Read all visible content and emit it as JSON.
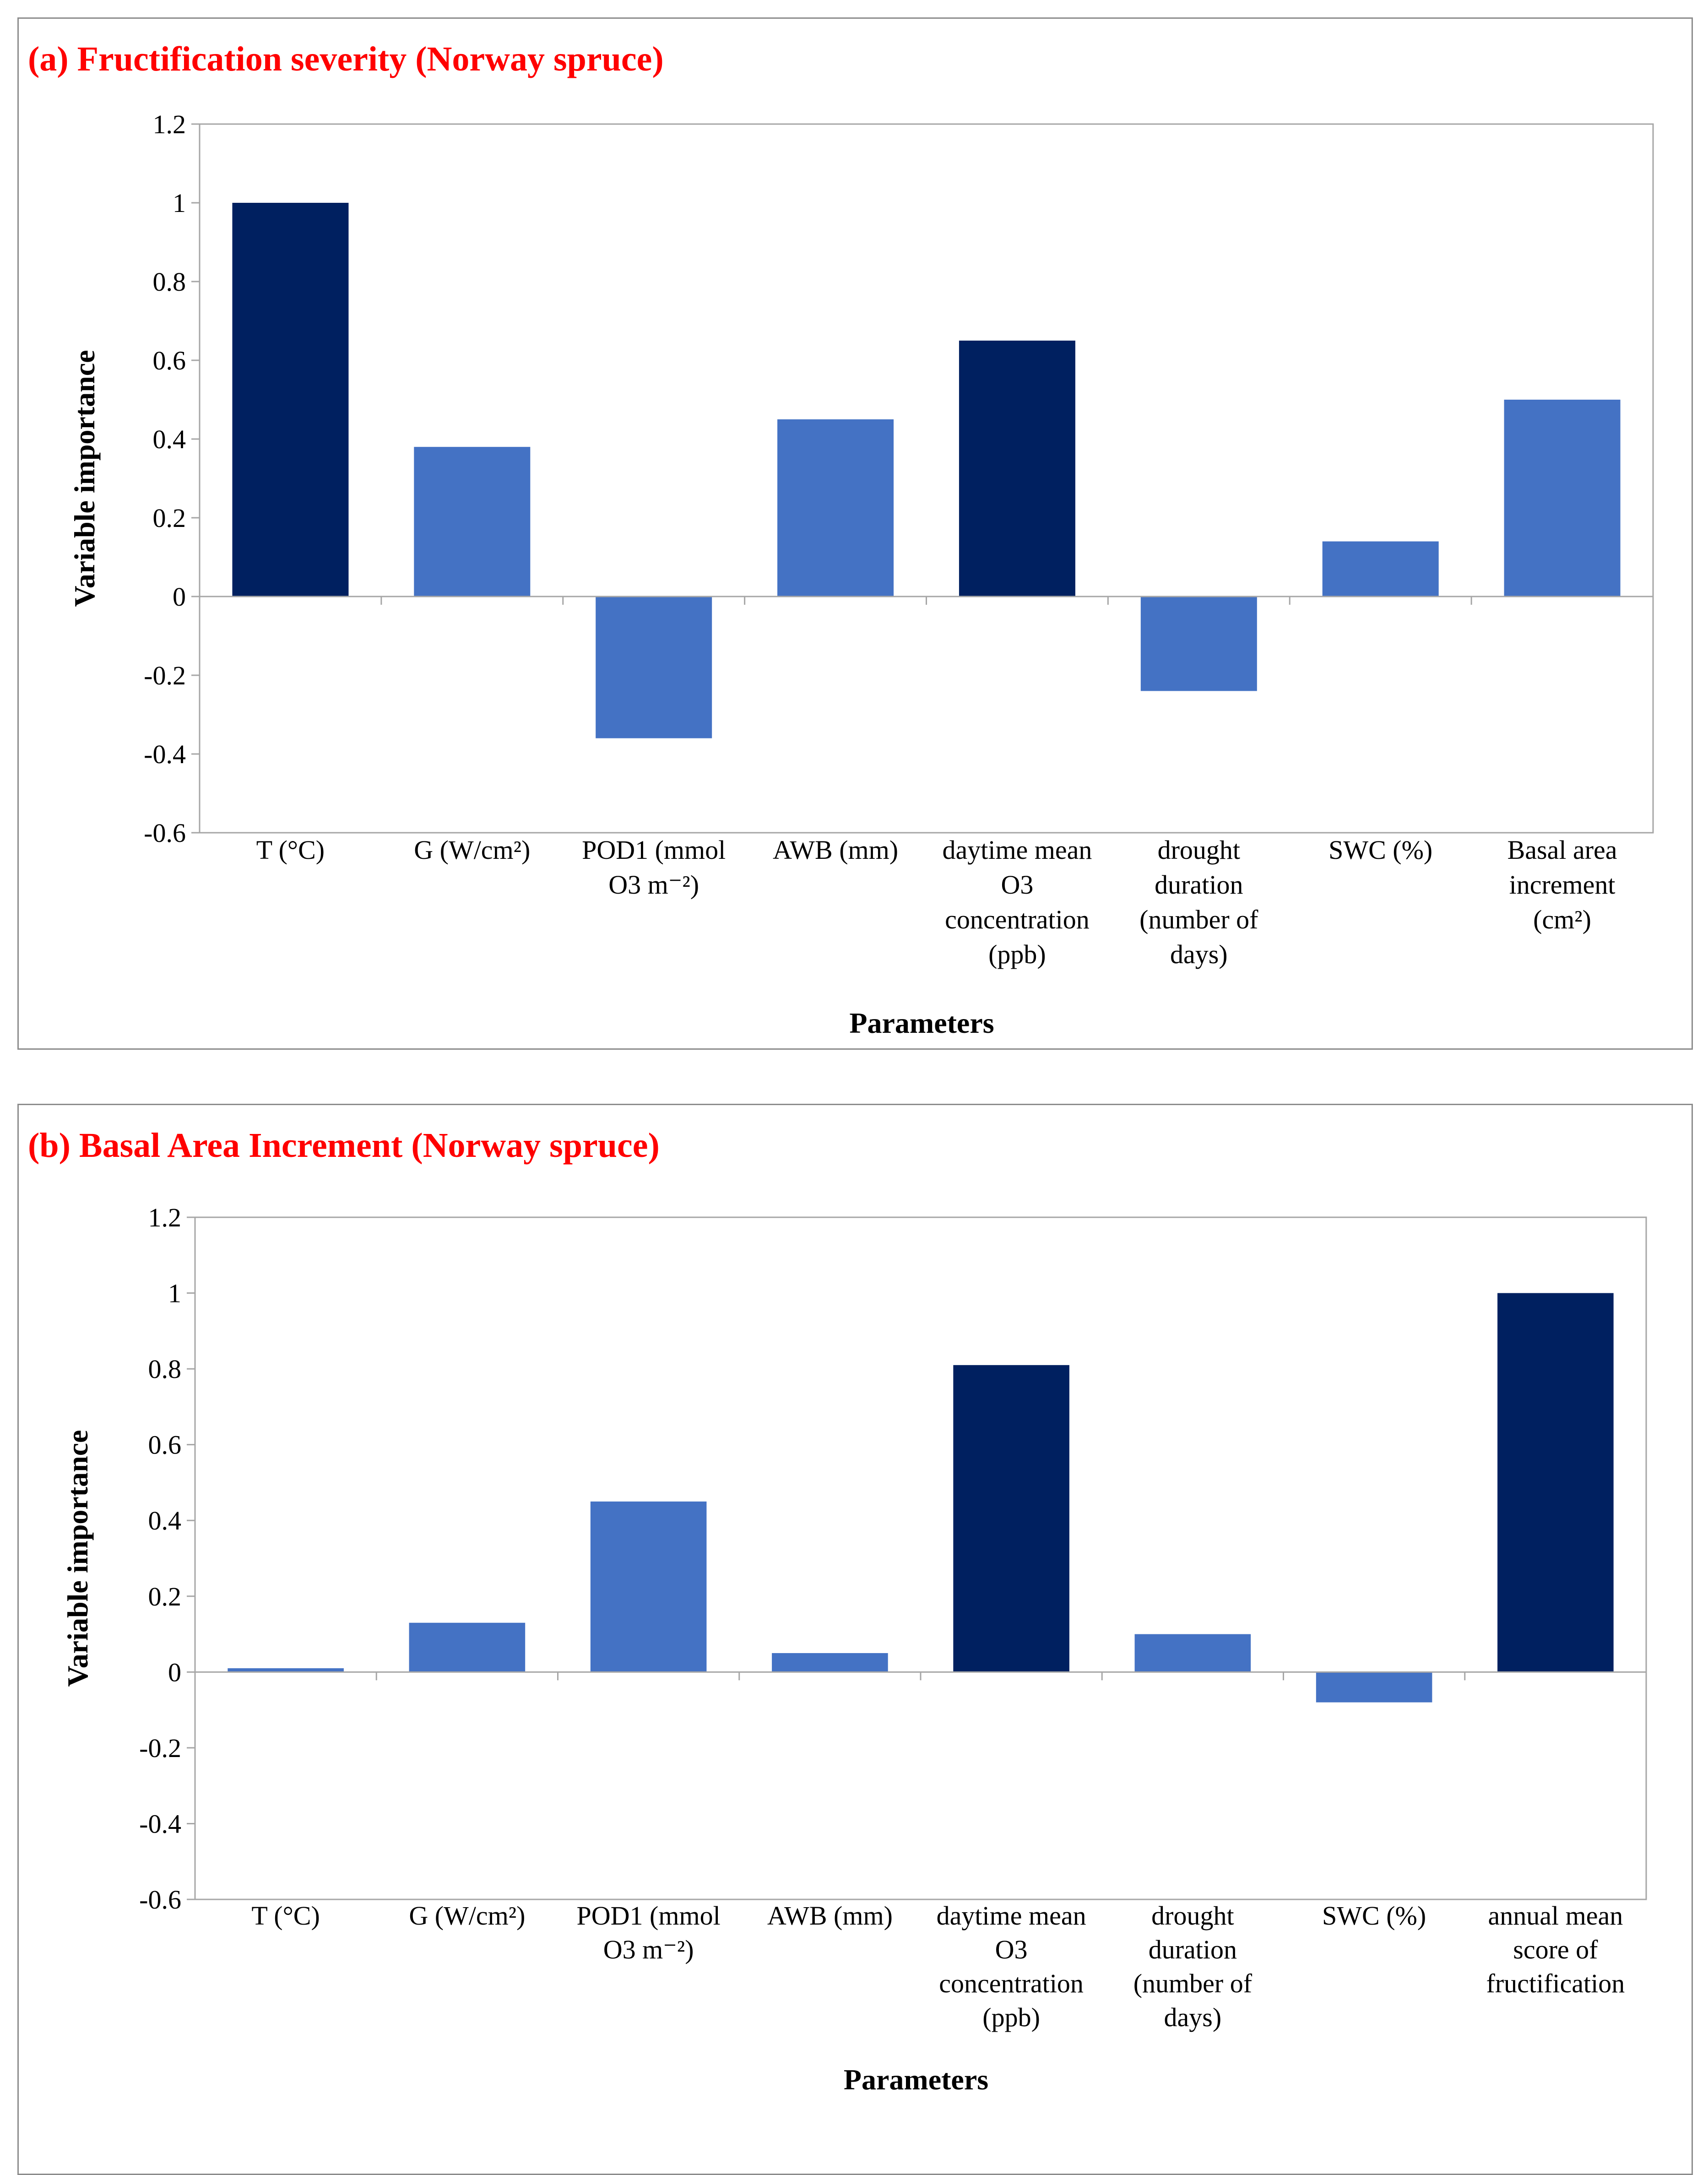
{
  "colors": {
    "dark": "#002060",
    "light": "#4472C4",
    "axis": "#a6a6a6",
    "title": "#ff0000"
  },
  "chart_data": [
    {
      "type": "bar",
      "title": "(a) Fructification severity (Norway spruce)",
      "xlabel": "Parameters",
      "ylabel": "Variable importance",
      "ylim": [
        -0.6,
        1.2
      ],
      "yticks": [
        "1.2",
        "1",
        "0.8",
        "0.6",
        "0.4",
        "0.2",
        "0",
        "-0.2",
        "-0.4",
        "-0.6"
      ],
      "grid": false,
      "categories": [
        [
          "T (°C)"
        ],
        [
          "G (W/cm²)"
        ],
        [
          "POD1 (mmol",
          "O3 m⁻²)"
        ],
        [
          "AWB (mm)"
        ],
        [
          "daytime mean",
          "O3",
          "concentration",
          "(ppb)"
        ],
        [
          "drought",
          "duration",
          "(number of",
          "days)"
        ],
        [
          "SWC (%)"
        ],
        [
          "Basal area",
          "increment",
          "(cm²)"
        ]
      ],
      "values": [
        1.0,
        0.38,
        -0.36,
        0.45,
        0.65,
        -0.24,
        0.14,
        0.5
      ],
      "highlight": [
        true,
        false,
        false,
        false,
        true,
        false,
        false,
        false
      ]
    },
    {
      "type": "bar",
      "title": "(b) Basal Area Increment (Norway spruce)",
      "xlabel": "Parameters",
      "ylabel": "Variable importance",
      "ylim": [
        -0.6,
        1.2
      ],
      "yticks": [
        "1.2",
        "1",
        "0.8",
        "0.6",
        "0.4",
        "0.2",
        "0",
        "-0.2",
        "-0.4",
        "-0.6"
      ],
      "grid": false,
      "categories": [
        [
          "T (°C)"
        ],
        [
          "G (W/cm²)"
        ],
        [
          "POD1 (mmol",
          "O3 m⁻²)"
        ],
        [
          "AWB (mm)"
        ],
        [
          "daytime mean",
          "O3",
          "concentration",
          "(ppb)"
        ],
        [
          "drought",
          "duration",
          "(number of",
          "days)"
        ],
        [
          "SWC (%)"
        ],
        [
          "annual mean",
          "score of",
          "fructification"
        ]
      ],
      "values": [
        0.01,
        0.13,
        0.45,
        0.05,
        0.81,
        0.1,
        -0.08,
        1.0
      ],
      "highlight": [
        false,
        false,
        false,
        false,
        true,
        false,
        false,
        true
      ]
    }
  ]
}
